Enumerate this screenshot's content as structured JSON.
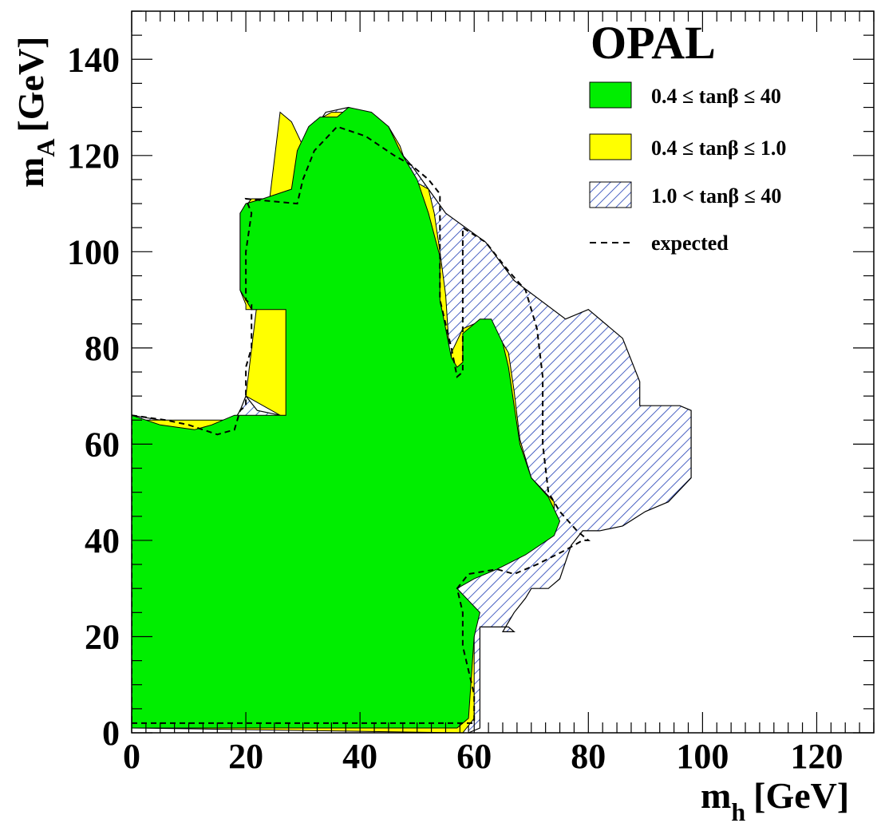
{
  "chart_data": {
    "type": "area",
    "title": "OPAL",
    "xlabel": "m",
    "xlabel_sub": "h",
    "xlabel_unit": "[GeV]",
    "ylabel": "m",
    "ylabel_sub": "A",
    "ylabel_unit": "[GeV]",
    "xlim": [
      0,
      130
    ],
    "ylim": [
      0,
      150
    ],
    "xticks": [
      0,
      20,
      40,
      60,
      80,
      100,
      120
    ],
    "yticks": [
      0,
      20,
      40,
      60,
      80,
      100,
      120,
      140
    ],
    "grid": false,
    "legend_position": "top-right",
    "series": [
      {
        "name": "1.0 < tanβ ≤ 40",
        "fill": "hatch",
        "color": "#1e3cb4",
        "points": [
          [
            17,
            63
          ],
          [
            19,
            67
          ],
          [
            20,
            70
          ],
          [
            22,
            67
          ],
          [
            26,
            66
          ],
          [
            26,
            65
          ],
          [
            28,
            65
          ],
          [
            28,
            73
          ],
          [
            28,
            90
          ],
          [
            28,
            113
          ],
          [
            30,
            122
          ],
          [
            34,
            129
          ],
          [
            38,
            130
          ],
          [
            43,
            128
          ],
          [
            46,
            122
          ],
          [
            49,
            118
          ],
          [
            52,
            113
          ],
          [
            55,
            108
          ],
          [
            62,
            102
          ],
          [
            67,
            94
          ],
          [
            76,
            86
          ],
          [
            80,
            88
          ],
          [
            86,
            82
          ],
          [
            89,
            73
          ],
          [
            89,
            68
          ],
          [
            92,
            68
          ],
          [
            96,
            68
          ],
          [
            98,
            67
          ],
          [
            98,
            53
          ],
          [
            94,
            48
          ],
          [
            90,
            46
          ],
          [
            86,
            43
          ],
          [
            82,
            42
          ],
          [
            79,
            42
          ],
          [
            77,
            39
          ],
          [
            75,
            32
          ],
          [
            73,
            30
          ],
          [
            70,
            30
          ],
          [
            69,
            28
          ],
          [
            67,
            25
          ],
          [
            65,
            21
          ],
          [
            67,
            21
          ],
          [
            66,
            22
          ],
          [
            61,
            22
          ],
          [
            61,
            16
          ],
          [
            61,
            1
          ],
          [
            59,
            0
          ],
          [
            59,
            2
          ],
          [
            59,
            15
          ],
          [
            59,
            20
          ],
          [
            57,
            30
          ],
          [
            54,
            30
          ],
          [
            37,
            30
          ],
          [
            0,
            30
          ],
          [
            0,
            66
          ],
          [
            10,
            64
          ],
          [
            17,
            63
          ]
        ]
      },
      {
        "name": "0.4 ≤ tanβ ≤ 1.0",
        "fill": "solid",
        "color": "#ffff00",
        "points": [
          [
            0,
            1
          ],
          [
            58,
            0
          ],
          [
            60,
            3
          ],
          [
            60,
            25
          ],
          [
            57,
            30
          ],
          [
            59,
            33
          ],
          [
            66,
            36
          ],
          [
            72,
            42
          ],
          [
            74,
            45
          ],
          [
            74,
            48
          ],
          [
            70,
            53
          ],
          [
            68,
            61
          ],
          [
            67,
            71
          ],
          [
            66,
            79
          ],
          [
            65,
            81
          ],
          [
            62,
            86
          ],
          [
            60,
            85
          ],
          [
            58,
            84
          ],
          [
            56,
            79
          ],
          [
            56,
            73
          ],
          [
            55,
            91
          ],
          [
            54,
            100
          ],
          [
            53,
            108
          ],
          [
            52,
            113
          ],
          [
            49,
            115
          ],
          [
            47,
            122
          ],
          [
            45,
            126
          ],
          [
            41,
            128
          ],
          [
            38,
            129
          ],
          [
            35,
            129
          ],
          [
            32,
            127
          ],
          [
            30,
            122
          ],
          [
            29,
            114
          ],
          [
            29,
            111
          ],
          [
            27,
            111
          ],
          [
            26,
            108
          ],
          [
            25,
            106
          ],
          [
            28,
            106
          ],
          [
            28,
            90
          ],
          [
            22,
            88
          ],
          [
            20,
            88
          ],
          [
            20,
            89
          ],
          [
            19,
            92
          ],
          [
            19,
            108
          ],
          [
            21,
            111
          ],
          [
            27,
            111
          ],
          [
            29,
            113
          ],
          [
            30,
            122
          ],
          [
            28,
            127
          ],
          [
            26,
            129
          ],
          [
            20,
            70
          ],
          [
            26,
            66
          ],
          [
            26,
            65
          ],
          [
            0,
            65
          ],
          [
            0,
            1
          ]
        ]
      },
      {
        "name": "0.4 ≤ tanβ ≤ 40",
        "fill": "solid",
        "color": "#00ee00",
        "points": [
          [
            0,
            1
          ],
          [
            57,
            1
          ],
          [
            59,
            3
          ],
          [
            60,
            20
          ],
          [
            61,
            25
          ],
          [
            57,
            30
          ],
          [
            60,
            32
          ],
          [
            64,
            34
          ],
          [
            69,
            37
          ],
          [
            74,
            41
          ],
          [
            75,
            44
          ],
          [
            73,
            49
          ],
          [
            70,
            53
          ],
          [
            68,
            60
          ],
          [
            67,
            68
          ],
          [
            66,
            76
          ],
          [
            65,
            81
          ],
          [
            63,
            86
          ],
          [
            61,
            86
          ],
          [
            58,
            83
          ],
          [
            58,
            77
          ],
          [
            57,
            76
          ],
          [
            56,
            78
          ],
          [
            55,
            84
          ],
          [
            54,
            90
          ],
          [
            54,
            99
          ],
          [
            52,
            108
          ],
          [
            50,
            115
          ],
          [
            47,
            121
          ],
          [
            45,
            126
          ],
          [
            42,
            129
          ],
          [
            38,
            130
          ],
          [
            36,
            128
          ],
          [
            33,
            128
          ],
          [
            31,
            126
          ],
          [
            29,
            121
          ],
          [
            28,
            113
          ],
          [
            23,
            111
          ],
          [
            20,
            110
          ],
          [
            19,
            108
          ],
          [
            19,
            92
          ],
          [
            21,
            88
          ],
          [
            27,
            88
          ],
          [
            27,
            66
          ],
          [
            25,
            66
          ],
          [
            20,
            66
          ],
          [
            18,
            66
          ],
          [
            14,
            64
          ],
          [
            11,
            63
          ],
          [
            5,
            64
          ],
          [
            0,
            66
          ],
          [
            0,
            1
          ]
        ]
      },
      {
        "name": "expected",
        "fill": "dashed",
        "color": "#000000",
        "points": [
          [
            0,
            2
          ],
          [
            60,
            2
          ],
          [
            60,
            8
          ],
          [
            58,
            18
          ],
          [
            58,
            25
          ],
          [
            57,
            30
          ],
          [
            59,
            33
          ],
          [
            64,
            34
          ],
          [
            67,
            33
          ],
          [
            71,
            35
          ],
          [
            76,
            38
          ],
          [
            79,
            40
          ],
          [
            80,
            40
          ],
          [
            78,
            42
          ],
          [
            75,
            46
          ],
          [
            73,
            50
          ],
          [
            72,
            60
          ],
          [
            72,
            74
          ],
          [
            71,
            84
          ],
          [
            69,
            92
          ],
          [
            66,
            96
          ],
          [
            62,
            102
          ],
          [
            58,
            105
          ],
          [
            58,
            92
          ],
          [
            58,
            75
          ],
          [
            57,
            74
          ],
          [
            56,
            80
          ],
          [
            54,
            90
          ],
          [
            54,
            112
          ],
          [
            52,
            115
          ],
          [
            49,
            118
          ],
          [
            46,
            120
          ],
          [
            41,
            124
          ],
          [
            36,
            126
          ],
          [
            32,
            121
          ],
          [
            30,
            115
          ],
          [
            29,
            110
          ],
          [
            20,
            111
          ],
          [
            21,
            108
          ],
          [
            20,
            100
          ],
          [
            20,
            90
          ],
          [
            21,
            89
          ],
          [
            21,
            85
          ],
          [
            21,
            80
          ],
          [
            20,
            76
          ],
          [
            20,
            68
          ],
          [
            19,
            67
          ],
          [
            18,
            63
          ],
          [
            15,
            62
          ],
          [
            10,
            64
          ],
          [
            6,
            65
          ],
          [
            0,
            66
          ],
          [
            0,
            2
          ]
        ]
      }
    ],
    "legend": [
      {
        "label": "0.4 ≤ tanβ ≤  40",
        "style": "solid",
        "color": "#00ee00"
      },
      {
        "label": "0.4 ≤ tanβ ≤  1.0",
        "style": "solid",
        "color": "#ffff00"
      },
      {
        "label": "1.0 < tanβ ≤  40",
        "style": "hatch",
        "color": "#1e3cb4"
      },
      {
        "label": "expected",
        "style": "dashed",
        "color": "#000000"
      }
    ]
  }
}
